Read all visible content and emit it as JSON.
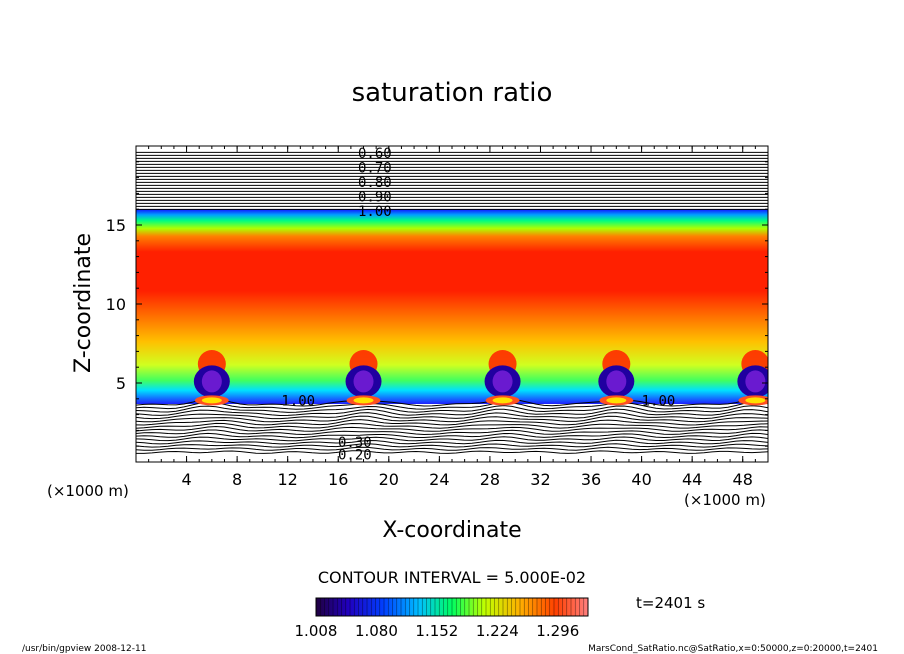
{
  "chart_data": {
    "type": "heatmap",
    "title": "saturation ratio",
    "xlabel": "X-coordinate",
    "ylabel": "Z-coordinate",
    "x_unit_left": "(×1000 m)",
    "x_unit_right": "(×1000 m)",
    "xlim": [
      0,
      50
    ],
    "ylim": [
      0,
      20
    ],
    "x_ticks": [
      4,
      8,
      12,
      16,
      20,
      24,
      28,
      32,
      36,
      40,
      44,
      48
    ],
    "y_ticks": [
      5,
      10,
      15
    ],
    "contour_labels_top": [
      "0.60",
      "0.70",
      "0.80",
      "0.90",
      "1.00"
    ],
    "contour_labels_bottom": [
      "0.20",
      "0.30"
    ],
    "contour_labels_mid": [
      "1.00",
      "1.00"
    ],
    "contour_interval_text": "CONTOUR INTERVAL = 5.000E-02",
    "colorbar": {
      "min": 1.008,
      "max": 1.332,
      "tick_labels": [
        "1.008",
        "1.080",
        "1.152",
        "1.224",
        "1.296"
      ]
    },
    "time_label": "t=2401 s",
    "cloud_centers_x": [
      6,
      18,
      29,
      38,
      49
    ]
  },
  "footer": {
    "left": "/usr/bin/gpview   2008-12-11",
    "right": "MarsCond_SatRatio.nc@SatRatio,x=0:50000,z=0:20000,t=2401"
  },
  "colors": {
    "low": "#1a0040",
    "blue": "#0000ff",
    "cyan": "#00d8ff",
    "green": "#00ff40",
    "yellow": "#ffff00",
    "orange": "#ff8000",
    "red": "#ff0000",
    "contour": "#000000"
  }
}
